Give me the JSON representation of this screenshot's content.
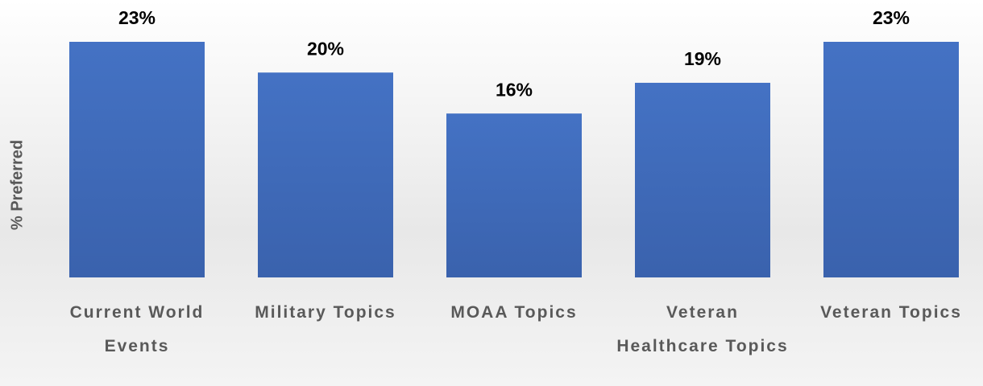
{
  "chart_data": {
    "type": "bar",
    "y_label": "% Preferred",
    "categories": [
      "Current World Events",
      "Military Topics",
      "MOAA Topics",
      "Veteran Healthcare Topics",
      "Veteran Topics"
    ],
    "values": [
      23,
      20,
      16,
      19,
      23
    ],
    "value_labels": [
      "23%",
      "20%",
      "16%",
      "19%",
      "23%"
    ],
    "color": "#4472c4",
    "ylim": [
      0,
      23
    ]
  }
}
